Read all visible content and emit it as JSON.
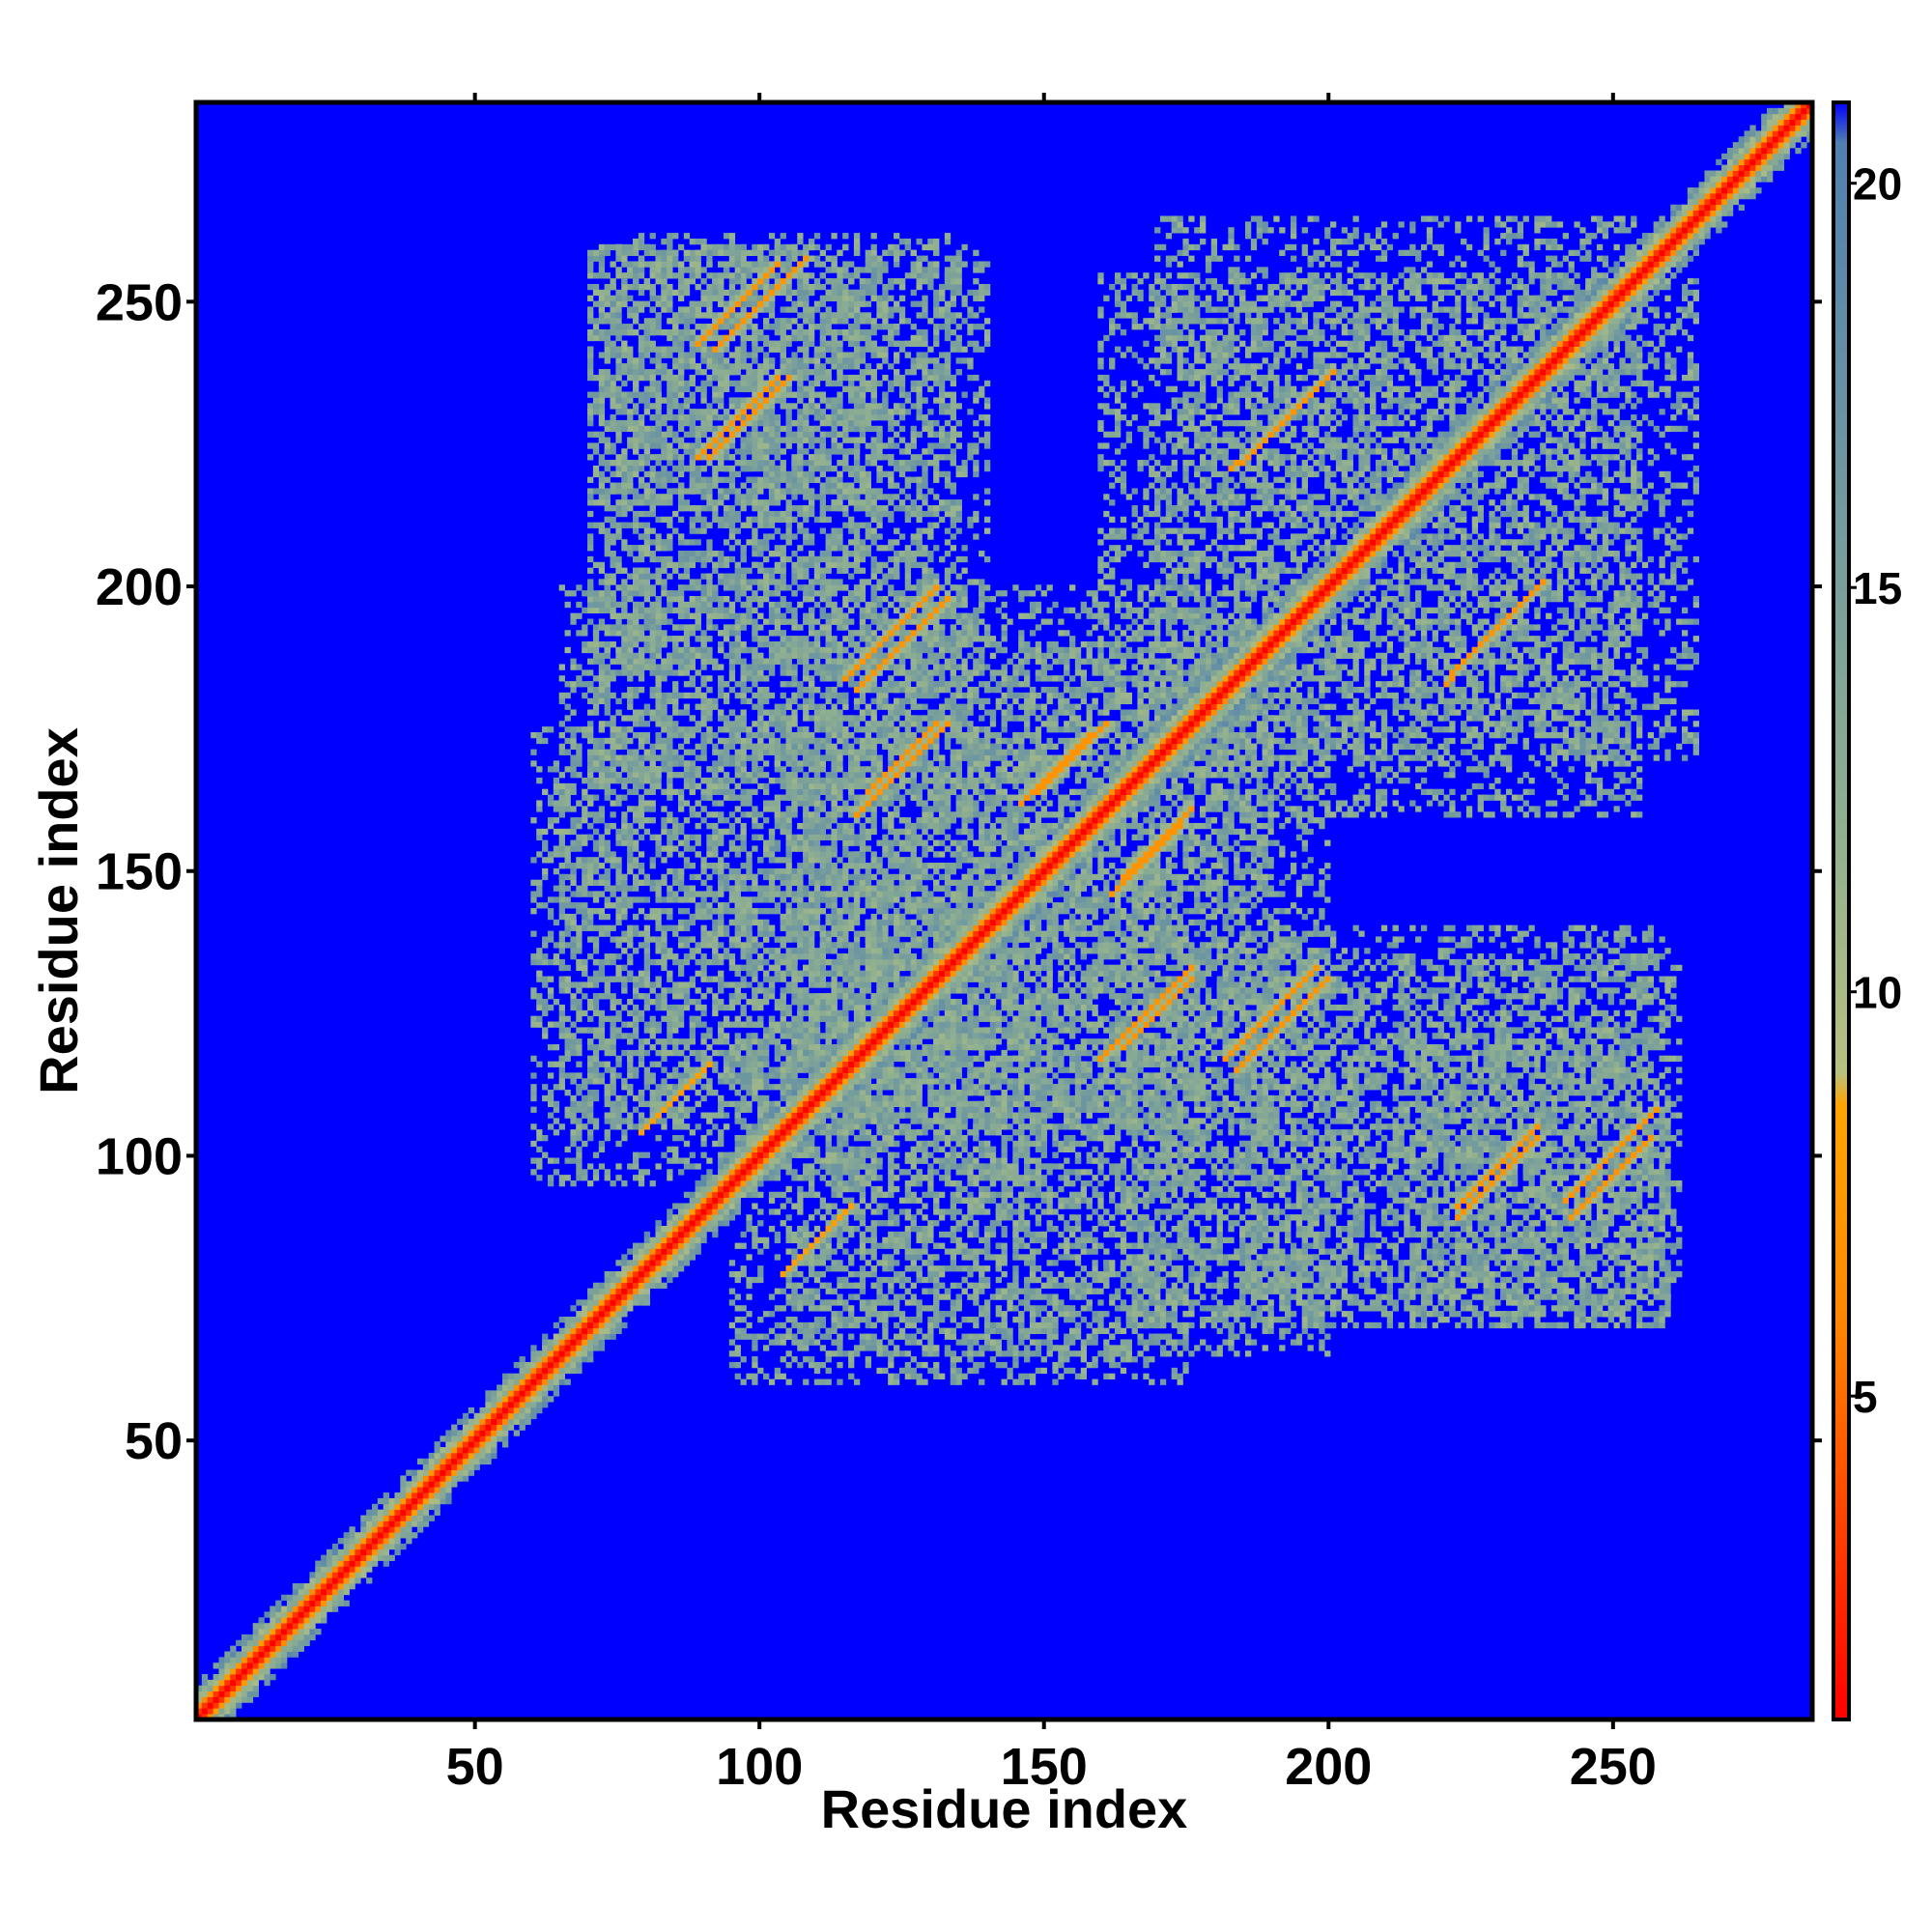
{
  "chart_data": {
    "type": "heatmap",
    "subtype": "residue distance map",
    "xlabel": "Residue index",
    "ylabel": "Residue index",
    "xlim": [
      1,
      285
    ],
    "ylim": [
      1,
      285
    ],
    "xticks": [
      50,
      100,
      150,
      200,
      250
    ],
    "yticks": [
      50,
      100,
      150,
      200,
      250
    ],
    "colorbar": {
      "ticks": [
        5,
        10,
        15,
        20
      ],
      "range": [
        1,
        21
      ],
      "colors": [
        {
          "value": 1,
          "color": "#ff0000"
        },
        {
          "value": 6,
          "color": "#ff8800"
        },
        {
          "value": 8.6,
          "color": "#ffa500"
        },
        {
          "value": 9,
          "color": "#b8c080"
        },
        {
          "value": 12,
          "color": "#90b090"
        },
        {
          "value": 20.5,
          "color": "#5080b0"
        },
        {
          "value": 21,
          "color": "#0000ff"
        }
      ]
    },
    "background_value": 21,
    "background_color": "#0000ff",
    "diagonal": {
      "from": 1,
      "to": 285,
      "value": 1
    },
    "contact_clusters": [
      {
        "x_center": 125,
        "y_center": 190,
        "value": 7,
        "extent": 8
      },
      {
        "x_center": 125,
        "y_center": 170,
        "value": 7,
        "extent": 6
      },
      {
        "x_center": 100,
        "y_center": 250,
        "value": 7,
        "extent": 8
      },
      {
        "x_center": 98,
        "y_center": 230,
        "value": 7,
        "extent": 7
      },
      {
        "x_center": 190,
        "y_center": 228,
        "value": 7,
        "extent": 7
      },
      {
        "x_center": 230,
        "y_center": 193,
        "value": 7,
        "extent": 8
      },
      {
        "x_center": 168,
        "y_center": 125,
        "value": 7,
        "extent": 8
      },
      {
        "x_center": 192,
        "y_center": 123,
        "value": 7,
        "extent": 8
      },
      {
        "x_center": 230,
        "y_center": 96,
        "value": 7,
        "extent": 7
      },
      {
        "x_center": 250,
        "y_center": 96,
        "value": 7,
        "extent": 7
      },
      {
        "x_center": 110,
        "y_center": 85,
        "value": 8,
        "extent": 6
      },
      {
        "x_center": 155,
        "y_center": 170,
        "value": 7,
        "extent": 6
      },
      {
        "x_center": 168,
        "y_center": 152,
        "value": 7,
        "extent": 6
      }
    ],
    "halo_regions": [
      {
        "x": [
          72,
          135
        ],
        "y": [
          185,
          262
        ],
        "value": 13
      },
      {
        "x": [
          160,
          265
        ],
        "y": [
          170,
          255
        ],
        "value": 13
      },
      {
        "x": [
          65,
          190
        ],
        "y": [
          105,
          200
        ],
        "value": 13
      },
      {
        "x": [
          95,
          175
        ],
        "y": [
          60,
          150
        ],
        "value": 13
      },
      {
        "x": [
          165,
          260
        ],
        "y": [
          70,
          140
        ],
        "value": 13
      },
      {
        "x": [
          215,
          260
        ],
        "y": [
          70,
          120
        ],
        "value": 13
      }
    ]
  }
}
